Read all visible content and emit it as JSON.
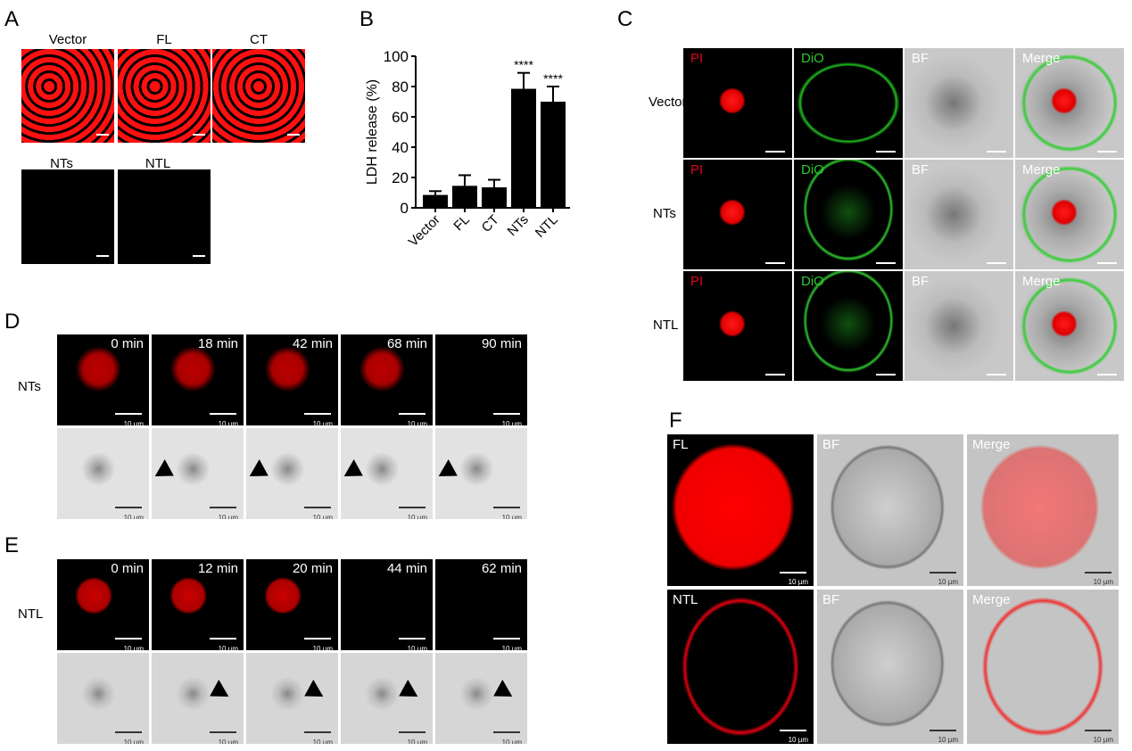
{
  "panels": {
    "A": "A",
    "B": "B",
    "C": "C",
    "D": "D",
    "E": "E",
    "F": "F"
  },
  "panelA": {
    "top": [
      "Vector",
      "FL",
      "CT"
    ],
    "bottom": [
      "NTs",
      "NTL"
    ]
  },
  "chart_data": {
    "type": "bar",
    "categories": [
      "Vector",
      "FL",
      "CT",
      "NTs",
      "NTL"
    ],
    "values": [
      8.5,
      14.5,
      13.5,
      78.5,
      70
    ],
    "error_upper": [
      11,
      21.5,
      18.5,
      89,
      80
    ],
    "significance": [
      "",
      "",
      "",
      "****",
      "****"
    ],
    "ylabel": "LDH release (%)",
    "ylim": [
      0,
      100
    ],
    "yticks": [
      "0",
      "20",
      "40",
      "60",
      "80",
      "100"
    ],
    "grid": false,
    "bar_color": "#000000"
  },
  "panelC": {
    "rows": [
      "Vector",
      "NTs",
      "NTL"
    ],
    "cols": [
      "PI",
      "DiO",
      "BF",
      "Merge"
    ],
    "colors": {
      "PI": "#e0001a",
      "DiO": "#2ec82e",
      "BF": "#000000",
      "Merge": "#000000"
    }
  },
  "panelD": {
    "row": "NTs",
    "times": [
      "0 min",
      "18 min",
      "42 min",
      "68 min",
      "90 min"
    ],
    "scale": "10 µm"
  },
  "panelE": {
    "row": "NTL",
    "times": [
      "0 min",
      "12 min",
      "20 min",
      "44 min",
      "62 min"
    ],
    "scale": "10 µm"
  },
  "panelF": {
    "rows": [
      "FL",
      "NTL"
    ],
    "cols": [
      "BF",
      "Merge"
    ],
    "scale": "10 µm"
  }
}
